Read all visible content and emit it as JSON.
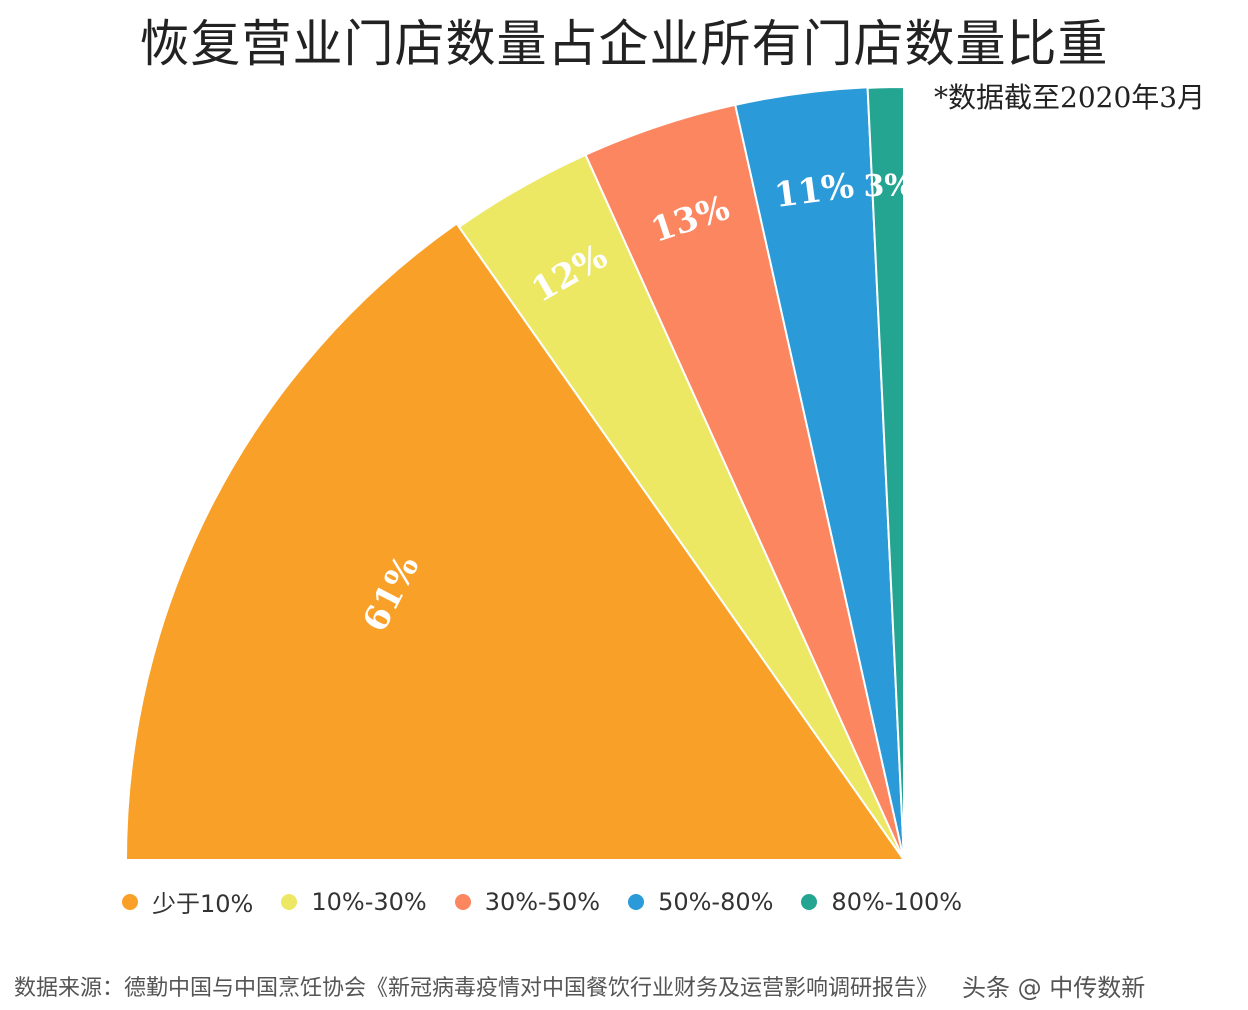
{
  "chart_data": {
    "type": "pie",
    "title": "恢复营业门店数量占企业所有门店数量比重",
    "subtitle": "*数据截至2020年3月",
    "categories": [
      "少于10%",
      "10%-30%",
      "30%-50%",
      "50%-80%",
      "80%-100%"
    ],
    "values": [
      61,
      12,
      13,
      11,
      3
    ],
    "labels": [
      "61%",
      "12%",
      "13%",
      "11%",
      "3%"
    ],
    "colors": [
      "#F9A028",
      "#ECE864",
      "#FB8660",
      "#2A9AD8",
      "#23A592"
    ],
    "legend_position": "bottom-left"
  },
  "footer": {
    "source": "数据来源：德勤中国与中国烹饪协会《新冠病毒疫情对中国餐饮行业财务及运营影响调研报告》",
    "watermark": "头条 @ 中传数新"
  }
}
